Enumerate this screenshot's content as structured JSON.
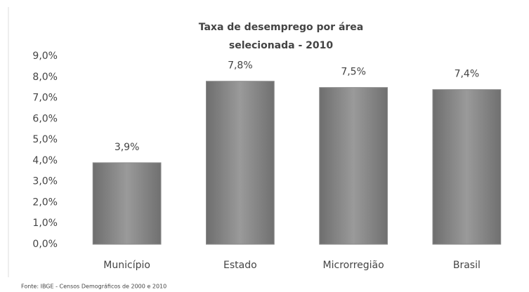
{
  "chart_data": {
    "type": "bar",
    "title": "Taxa de desemprego por área selecionada - 2010",
    "categories": [
      "Município",
      "Estado",
      "Microrregião",
      "Brasil"
    ],
    "values": [
      3.9,
      7.8,
      7.5,
      7.4
    ],
    "value_labels": [
      "3,9%",
      "7,8%",
      "7,5%",
      "7,4%"
    ],
    "color": "#8a8a8a",
    "ylim": [
      0,
      9
    ],
    "yticks": [
      {
        "value": 0,
        "label": "0,0%"
      },
      {
        "value": 1,
        "label": "1,0%"
      },
      {
        "value": 2,
        "label": "2,0%"
      },
      {
        "value": 3,
        "label": "3,0%"
      },
      {
        "value": 4,
        "label": "4,0%"
      },
      {
        "value": 5,
        "label": "5,0%"
      },
      {
        "value": 6,
        "label": "6,0%"
      },
      {
        "value": 7,
        "label": "7,0%"
      },
      {
        "value": 8,
        "label": "8,0%"
      },
      {
        "value": 9,
        "label": "9,0%"
      }
    ],
    "grid": false,
    "source": "Fonte: IBGE - Censos Demográficos de 2000 e 2010"
  }
}
